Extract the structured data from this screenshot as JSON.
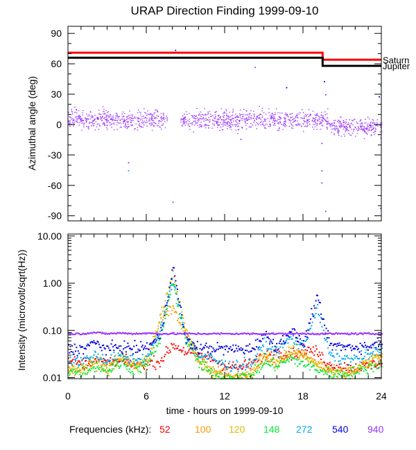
{
  "colors": {
    "axis": "#000000",
    "saturn": "#ff0000",
    "jupiter": "#000000"
  },
  "chart_data": [
    {
      "type": "scatter",
      "panel": "top",
      "title": "URAP Direction Finding  1999-09-10",
      "xlabel": "",
      "ylabel": "Azimuthal angle (deg)",
      "xlim": [
        0,
        24
      ],
      "ylim": [
        -95,
        97
      ],
      "y_ticks": [
        "90",
        "60",
        "30",
        "0",
        "-30",
        "-60",
        "-90"
      ],
      "y_tick_values": [
        90,
        60,
        30,
        0,
        -30,
        -60,
        -90
      ],
      "reference_lines": [
        {
          "name": "Saturn",
          "color": "#ff0000",
          "segments": [
            [
              0,
              19.5,
              71
            ],
            [
              19.5,
              24,
              64
            ]
          ]
        },
        {
          "name": "Jupiter",
          "color": "#000000",
          "segments": [
            [
              0,
              19.5,
              66
            ],
            [
              19.5,
              24,
              58
            ]
          ]
        }
      ],
      "series": [
        {
          "name": "940",
          "color": "#9933ff",
          "description_values": {
            "main_band_center_deg": 5,
            "main_band_halfwidth_deg": 10,
            "late_band_center_deg": -2,
            "late_band_start_hr": 20
          }
        }
      ],
      "outliers": [
        {
          "x": 4.6,
          "y": -37
        },
        {
          "x": 4.6,
          "y": -45
        },
        {
          "x": 8.0,
          "y": -76
        },
        {
          "x": 8.2,
          "y": 74
        },
        {
          "x": 19.4,
          "y": -57
        },
        {
          "x": 19.4,
          "y": -45
        },
        {
          "x": 19.7,
          "y": -85
        },
        {
          "x": 19.6,
          "y": 43
        },
        {
          "x": 19.7,
          "y": 30
        },
        {
          "x": 14.3,
          "y": 57
        },
        {
          "x": 16.7,
          "y": 37
        },
        {
          "x": 23.9,
          "y": -82
        },
        {
          "x": 23.8,
          "y": 28
        },
        {
          "x": 23.9,
          "y": 39
        },
        {
          "x": 13.2,
          "y": -14
        },
        {
          "x": 19.4,
          "y": -18
        }
      ]
    },
    {
      "type": "line",
      "panel": "bottom",
      "xlabel": "time - hours on 1999-09-10",
      "ylabel": "Intensity (microvolt/sqrt(Hz))",
      "xscale": "linear",
      "yscale": "log",
      "xlim": [
        0,
        24
      ],
      "ylim": [
        0.0095,
        11
      ],
      "x_ticks": [
        "0",
        "6",
        "12",
        "18",
        "24"
      ],
      "x_tick_values": [
        0,
        6,
        12,
        18,
        24
      ],
      "y_ticks": [
        "10.00",
        "1.00",
        "0.10",
        "0.01"
      ],
      "y_tick_values": [
        10,
        1,
        0.1,
        0.01
      ],
      "legend_title": "Frequencies (kHz):",
      "series": [
        {
          "name": "52",
          "color": "#ff0000",
          "x": [
            0,
            1,
            2,
            3,
            4,
            5,
            6,
            7,
            8,
            9,
            10,
            11,
            12,
            13,
            14,
            15,
            16,
            17,
            18,
            19,
            20,
            21,
            22,
            23,
            24
          ],
          "values": [
            0.022,
            0.02,
            0.024,
            0.02,
            0.022,
            0.019,
            0.02,
            0.022,
            0.05,
            0.035,
            0.03,
            0.025,
            0.018,
            0.016,
            0.02,
            0.028,
            0.035,
            0.03,
            0.04,
            0.035,
            0.018,
            0.017,
            0.016,
            0.018,
            0.021
          ]
        },
        {
          "name": "100",
          "color": "#ff9900",
          "x": [
            0,
            1,
            2,
            3,
            4,
            5,
            6,
            7,
            8,
            9,
            10,
            11,
            12,
            13,
            14,
            15,
            16,
            17,
            18,
            19,
            20,
            21,
            22,
            23,
            24
          ],
          "values": [
            0.015,
            0.014,
            0.02,
            0.015,
            0.025,
            0.016,
            0.02,
            0.15,
            0.3,
            0.08,
            0.02,
            0.014,
            0.011,
            0.01,
            0.012,
            0.025,
            0.02,
            0.03,
            0.03,
            0.02,
            0.013,
            0.012,
            0.014,
            0.02,
            0.03
          ]
        },
        {
          "name": "120",
          "color": "#ddbb00",
          "x": [
            0,
            1,
            2,
            3,
            4,
            5,
            6,
            7,
            8,
            9,
            10,
            11,
            12,
            13,
            14,
            15,
            16,
            17,
            18,
            19,
            20,
            21,
            22,
            23,
            24
          ],
          "values": [
            0.016,
            0.015,
            0.025,
            0.016,
            0.03,
            0.018,
            0.025,
            0.17,
            1.5,
            0.1,
            0.025,
            0.013,
            0.011,
            0.01,
            0.013,
            0.03,
            0.022,
            0.04,
            0.03,
            0.02,
            0.014,
            0.013,
            0.015,
            0.022,
            0.035
          ]
        },
        {
          "name": "148",
          "color": "#00ee33",
          "x": [
            0,
            1,
            2,
            3,
            4,
            5,
            6,
            7,
            8,
            9,
            10,
            11,
            12,
            13,
            14,
            15,
            16,
            17,
            18,
            19,
            20,
            21,
            22,
            23,
            24
          ],
          "values": [
            0.014,
            0.013,
            0.018,
            0.014,
            0.02,
            0.015,
            0.018,
            0.06,
            1.0,
            0.06,
            0.02,
            0.012,
            0.01,
            0.01,
            0.011,
            0.02,
            0.018,
            0.025,
            0.02,
            0.015,
            0.012,
            0.012,
            0.013,
            0.016,
            0.02
          ]
        },
        {
          "name": "272",
          "color": "#00aaee",
          "x": [
            0,
            1,
            2,
            3,
            4,
            5,
            6,
            7,
            8,
            9,
            10,
            11,
            12,
            13,
            14,
            15,
            16,
            17,
            18,
            19,
            20,
            21,
            22,
            23,
            24
          ],
          "values": [
            0.025,
            0.022,
            0.03,
            0.023,
            0.028,
            0.024,
            0.026,
            0.09,
            1.2,
            0.07,
            0.03,
            0.025,
            0.018,
            0.018,
            0.02,
            0.05,
            0.035,
            0.07,
            0.045,
            0.3,
            0.03,
            0.025,
            0.025,
            0.03,
            0.04
          ]
        },
        {
          "name": "540",
          "color": "#0000dd",
          "x": [
            0,
            1,
            2,
            3,
            4,
            5,
            6,
            7,
            8,
            9,
            10,
            11,
            12,
            13,
            14,
            15,
            16,
            17,
            18,
            19,
            20,
            21,
            22,
            23,
            24
          ],
          "values": [
            0.04,
            0.04,
            0.055,
            0.04,
            0.045,
            0.04,
            0.045,
            0.07,
            2.2,
            0.06,
            0.042,
            0.042,
            0.04,
            0.04,
            0.04,
            0.08,
            0.045,
            0.1,
            0.05,
            0.5,
            0.05,
            0.045,
            0.045,
            0.045,
            0.06
          ]
        },
        {
          "name": "940",
          "color": "#9933ff",
          "x": [
            0,
            1,
            2,
            3,
            4,
            5,
            6,
            7,
            8,
            9,
            10,
            11,
            12,
            13,
            14,
            15,
            16,
            17,
            18,
            19,
            20,
            21,
            22,
            23,
            24
          ],
          "values": [
            0.085,
            0.085,
            0.09,
            0.085,
            0.088,
            0.085,
            0.087,
            0.085,
            0.085,
            0.085,
            0.085,
            0.085,
            0.085,
            0.085,
            0.085,
            0.085,
            0.085,
            0.085,
            0.085,
            0.085,
            0.085,
            0.085,
            0.085,
            0.085,
            0.085
          ]
        }
      ]
    }
  ]
}
